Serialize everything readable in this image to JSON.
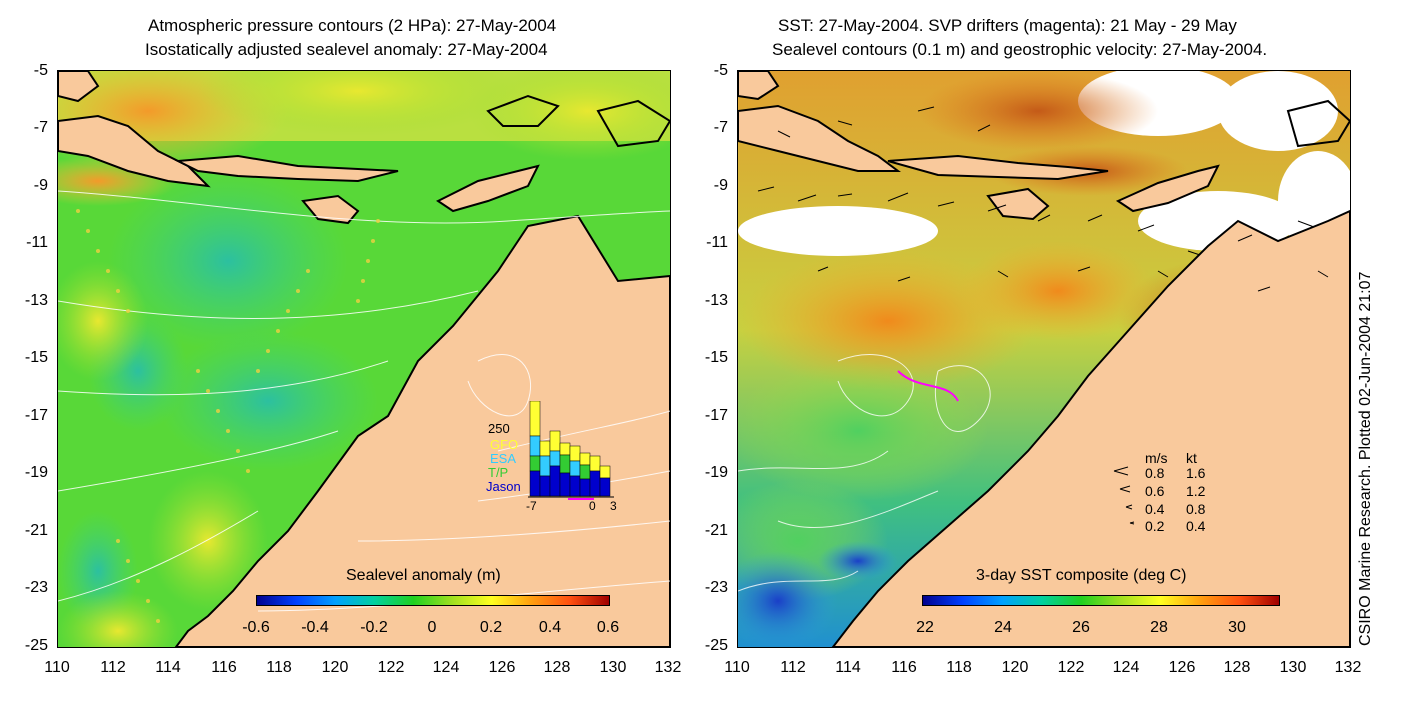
{
  "left_panel": {
    "title_line1": "Atmospheric pressure contours (2 HPa): 27-May-2004",
    "title_line2": "Isostatically adjusted sealevel anomaly: 27-May-2004",
    "colorbar_title": "Sealevel anomaly (m)",
    "colorbar_ticks": [
      "-0.6",
      "-0.4",
      "-0.2",
      "0",
      "0.2",
      "0.4",
      "0.6"
    ],
    "inset": {
      "count_label": "250",
      "legend": [
        "GFO",
        "ESA",
        "T/P",
        "Jason"
      ],
      "legend_colors": [
        "#ffff33",
        "#33ccff",
        "#33cc33",
        "#0000cc"
      ],
      "x_ticks": [
        "-7",
        "0",
        "3"
      ]
    }
  },
  "right_panel": {
    "title_line1": "SST: 27-May-2004. SVP drifters (magenta): 21 May - 29 May",
    "title_line2": "Sealevel contours (0.1 m) and geostrophic velocity: 27-May-2004.",
    "colorbar_title": "3-day SST composite (deg C)",
    "colorbar_ticks": [
      "22",
      "24",
      "26",
      "28",
      "30"
    ],
    "velocity_legend": {
      "header_ms": "m/s",
      "header_kt": "kt",
      "rows": [
        {
          "ms": "0.8",
          "kt": "1.6"
        },
        {
          "ms": "0.6",
          "kt": "1.2"
        },
        {
          "ms": "0.4",
          "kt": "0.8"
        },
        {
          "ms": "0.2",
          "kt": "0.4"
        }
      ]
    }
  },
  "axes": {
    "y_ticks": [
      "-5",
      "-7",
      "-9",
      "-11",
      "-13",
      "-15",
      "-17",
      "-19",
      "-21",
      "-23",
      "-25"
    ],
    "x_ticks": [
      "110",
      "112",
      "114",
      "116",
      "118",
      "120",
      "122",
      "124",
      "126",
      "128",
      "130",
      "132"
    ]
  },
  "credit": "CSIRO Marine Research. Plotted 02-Jun-2004 21:07",
  "colors": {
    "land": "#f9c99c",
    "ocean_green": "#44dd22",
    "warm": "#f08a1c",
    "cold": "#1a3fc8"
  }
}
